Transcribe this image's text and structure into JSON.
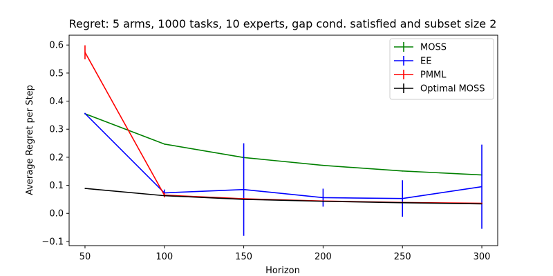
{
  "chart_data": {
    "type": "line",
    "title": "Regret: 5 arms, 1000 tasks, 10 experts, gap cond. satisfied and subset size 2",
    "xlabel": "Horizon",
    "ylabel": "Average Regret per Step",
    "x": [
      50,
      100,
      150,
      200,
      250,
      300
    ],
    "xlim": [
      40,
      310
    ],
    "ylim": [
      -0.115,
      0.635
    ],
    "xticks": [
      "50",
      "100",
      "150",
      "200",
      "250",
      "300"
    ],
    "yticks": [
      "−0.1",
      "0.0",
      "0.1",
      "0.2",
      "0.3",
      "0.4",
      "0.5",
      "0.6"
    ],
    "ytick_values": [
      -0.1,
      0.0,
      0.1,
      0.2,
      0.3,
      0.4,
      0.5,
      0.6
    ],
    "grid": false,
    "legend_position": "top-right",
    "series": [
      {
        "name": "MOSS",
        "color": "#008000",
        "values": [
          0.355,
          0.247,
          0.199,
          0.171,
          0.151,
          0.137
        ],
        "errors": [
          0.002,
          0.002,
          0.002,
          0.002,
          0.002,
          0.002
        ]
      },
      {
        "name": "EE",
        "color": "#0000ff",
        "values": [
          0.356,
          0.073,
          0.085,
          0.056,
          0.053,
          0.095
        ],
        "errors": [
          0.002,
          0.012,
          0.165,
          0.032,
          0.065,
          0.15
        ]
      },
      {
        "name": "PMML",
        "color": "#ff0000",
        "values": [
          0.574,
          0.065,
          0.052,
          0.044,
          0.039,
          0.036
        ],
        "errors": [
          0.025,
          0.008,
          0.003,
          0.002,
          0.002,
          0.002
        ]
      },
      {
        "name": "Optimal MOSS",
        "color": "#000000",
        "values": [
          0.089,
          0.063,
          0.05,
          0.043,
          0.038,
          0.034
        ],
        "errors": [
          0.001,
          0.001,
          0.001,
          0.001,
          0.001,
          0.001
        ]
      }
    ]
  }
}
